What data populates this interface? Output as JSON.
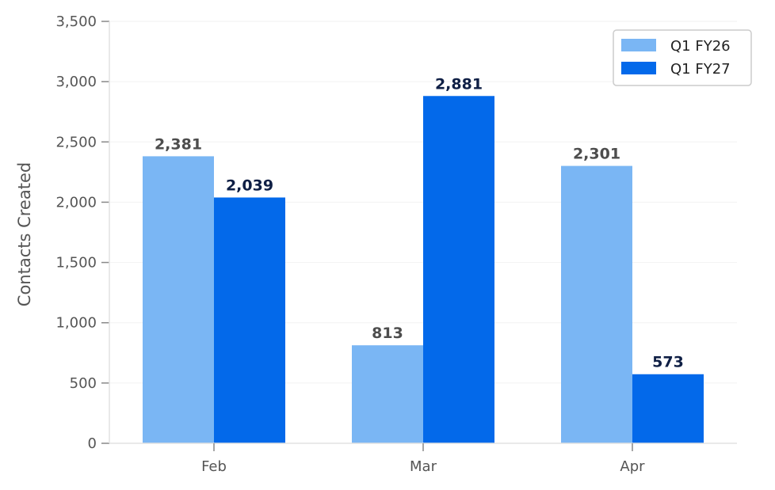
{
  "chart_data": {
    "type": "bar",
    "title": "",
    "xlabel": "",
    "ylabel": "Contacts Created",
    "categories": [
      "Feb",
      "Mar",
      "Apr"
    ],
    "series": [
      {
        "name": "Q1 FY26",
        "values": [
          2381,
          813,
          2301
        ],
        "labels": [
          "2,381",
          "813",
          "2,301"
        ],
        "color": "#7ab6f4",
        "label_color": "#4d4d4d"
      },
      {
        "name": "Q1 FY27",
        "values": [
          2039,
          2881,
          573
        ],
        "labels": [
          "2,039",
          "2,881",
          "573"
        ],
        "color": "#0369ea",
        "label_color": "#0f1f45"
      }
    ],
    "ylim": [
      0,
      3500
    ],
    "yticks": [
      0,
      500,
      1000,
      1500,
      2000,
      2500,
      3000,
      3500
    ],
    "ytick_labels": [
      "0",
      "500",
      "1,000",
      "1,500",
      "2,000",
      "2,500",
      "3,000",
      "3,500"
    ],
    "grid": true,
    "legend_position": "top-right"
  }
}
